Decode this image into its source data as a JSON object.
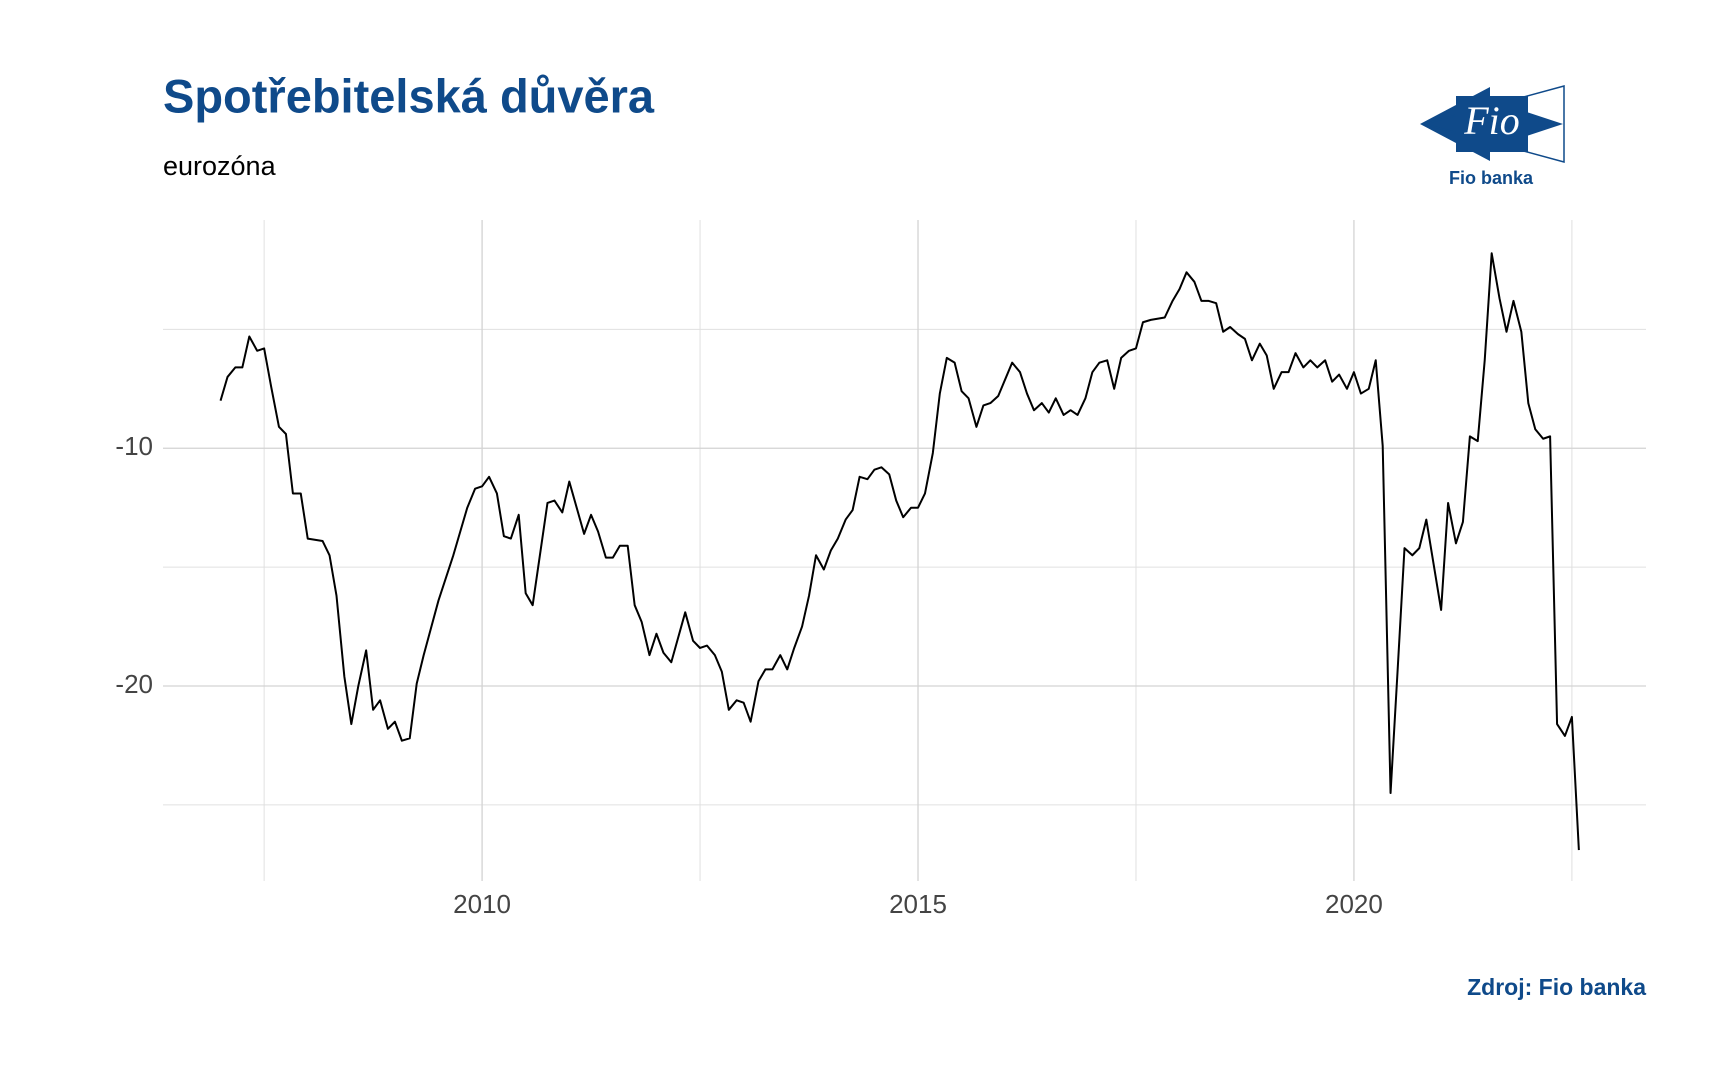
{
  "chart_data": {
    "type": "line",
    "title": "Spotřebitelská důvěra",
    "subtitle": "eurozóna",
    "source": "Zdroj: Fio banka",
    "logo": {
      "mark": "Fio",
      "name": "Fio banka"
    },
    "color": "#000000",
    "grid": true,
    "xlim": [
      2006.34,
      2023.35
    ],
    "ylim": [
      -28.2,
      -0.4
    ],
    "xticks": [
      2010,
      2015,
      2020
    ],
    "yticks": [
      -10,
      -20
    ],
    "xminor": [
      2007.5,
      2012.5,
      2017.5,
      2022.5
    ],
    "yminor": [
      -5,
      -15,
      -25
    ],
    "x": [
      2007.0,
      2007.08,
      2007.17,
      2007.25,
      2007.33,
      2007.42,
      2007.5,
      2007.58,
      2007.67,
      2007.75,
      2007.83,
      2007.92,
      2008.0,
      2008.17,
      2008.25,
      2008.33,
      2008.42,
      2008.5,
      2008.58,
      2008.67,
      2008.75,
      2008.83,
      2008.92,
      2009.0,
      2009.08,
      2009.17,
      2009.25,
      2009.33,
      2009.5,
      2009.67,
      2009.83,
      2009.92,
      2010.0,
      2010.08,
      2010.17,
      2010.25,
      2010.33,
      2010.42,
      2010.5,
      2010.58,
      2010.75,
      2010.83,
      2010.92,
      2011.0,
      2011.17,
      2011.25,
      2011.33,
      2011.42,
      2011.5,
      2011.58,
      2011.67,
      2011.75,
      2011.83,
      2011.92,
      2012.0,
      2012.08,
      2012.17,
      2012.33,
      2012.42,
      2012.5,
      2012.58,
      2012.67,
      2012.75,
      2012.83,
      2012.92,
      2013.0,
      2013.08,
      2013.17,
      2013.25,
      2013.33,
      2013.42,
      2013.5,
      2013.58,
      2013.67,
      2013.75,
      2013.83,
      2013.92,
      2014.0,
      2014.08,
      2014.17,
      2014.25,
      2014.33,
      2014.42,
      2014.5,
      2014.58,
      2014.67,
      2014.75,
      2014.83,
      2014.92,
      2015.0,
      2015.08,
      2015.17,
      2015.25,
      2015.33,
      2015.42,
      2015.5,
      2015.58,
      2015.67,
      2015.75,
      2015.83,
      2015.92,
      2016.0,
      2016.08,
      2016.17,
      2016.25,
      2016.33,
      2016.42,
      2016.5,
      2016.58,
      2016.67,
      2016.75,
      2016.83,
      2016.92,
      2017.0,
      2017.08,
      2017.17,
      2017.25,
      2017.33,
      2017.42,
      2017.5,
      2017.58,
      2017.67,
      2017.83,
      2017.92,
      2018.0,
      2018.08,
      2018.17,
      2018.25,
      2018.33,
      2018.42,
      2018.5,
      2018.58,
      2018.67,
      2018.75,
      2018.83,
      2018.92,
      2019.0,
      2019.08,
      2019.17,
      2019.25,
      2019.33,
      2019.42,
      2019.5,
      2019.58,
      2019.67,
      2019.75,
      2019.83,
      2019.92,
      2020.0,
      2020.08,
      2020.17,
      2020.25,
      2020.33,
      2020.42,
      2020.5,
      2020.58,
      2020.67,
      2020.75,
      2020.83,
      2021.0,
      2021.08,
      2021.17,
      2021.25,
      2021.33,
      2021.42,
      2021.5,
      2021.58,
      2021.67,
      2021.75,
      2021.83,
      2021.92,
      2022.0,
      2022.08,
      2022.17,
      2022.25,
      2022.33,
      2022.42,
      2022.5,
      2022.58
    ],
    "values": [
      -8.0,
      -7.0,
      -6.6,
      -6.6,
      -5.3,
      -5.9,
      -5.8,
      -7.4,
      -9.1,
      -9.4,
      -11.9,
      -11.9,
      -13.8,
      -13.9,
      -14.5,
      -16.2,
      -19.6,
      -21.6,
      -20.0,
      -18.5,
      -21.0,
      -20.6,
      -21.8,
      -21.5,
      -22.3,
      -22.2,
      -19.9,
      -18.7,
      -16.4,
      -14.5,
      -12.5,
      -11.7,
      -11.6,
      -11.2,
      -11.9,
      -13.7,
      -13.8,
      -12.8,
      -16.1,
      -16.6,
      -12.3,
      -12.2,
      -12.7,
      -11.4,
      -13.6,
      -12.8,
      -13.5,
      -14.6,
      -14.6,
      -14.1,
      -14.1,
      -16.6,
      -17.3,
      -18.7,
      -17.8,
      -18.6,
      -19.0,
      -16.9,
      -18.1,
      -18.4,
      -18.3,
      -18.7,
      -19.4,
      -21.0,
      -20.6,
      -20.7,
      -21.5,
      -19.8,
      -19.3,
      -19.3,
      -18.7,
      -19.3,
      -18.4,
      -17.5,
      -16.2,
      -14.5,
      -15.1,
      -14.3,
      -13.8,
      -13.0,
      -12.6,
      -11.2,
      -11.3,
      -10.9,
      -10.8,
      -11.1,
      -12.2,
      -12.9,
      -12.5,
      -12.5,
      -11.9,
      -10.2,
      -7.7,
      -6.2,
      -6.4,
      -7.6,
      -7.9,
      -9.1,
      -8.2,
      -8.1,
      -7.8,
      -7.1,
      -6.4,
      -6.8,
      -7.7,
      -8.4,
      -8.1,
      -8.5,
      -7.9,
      -8.6,
      -8.4,
      -8.6,
      -7.9,
      -6.8,
      -6.4,
      -6.3,
      -7.5,
      -6.2,
      -5.9,
      -5.8,
      -4.7,
      -4.6,
      -4.5,
      -3.8,
      -3.3,
      -2.6,
      -3.0,
      -3.8,
      -3.8,
      -3.9,
      -5.1,
      -4.9,
      -5.2,
      -5.4,
      -6.3,
      -5.6,
      -6.1,
      -7.5,
      -6.8,
      -6.8,
      -6.0,
      -6.6,
      -6.3,
      -6.6,
      -6.3,
      -7.2,
      -6.9,
      -7.5,
      -6.8,
      -7.7,
      -7.5,
      -6.3,
      -9.9,
      -24.5,
      -19.4,
      -14.2,
      -14.5,
      -14.2,
      -13.0,
      -16.8,
      -12.3,
      -14.0,
      -13.1,
      -9.5,
      -9.7,
      -6.3,
      -1.8,
      -3.7,
      -5.1,
      -3.8,
      -5.1,
      -8.1,
      -9.2,
      -9.6,
      -9.5,
      -21.6,
      -22.1,
      -21.3,
      -26.9
    ]
  }
}
